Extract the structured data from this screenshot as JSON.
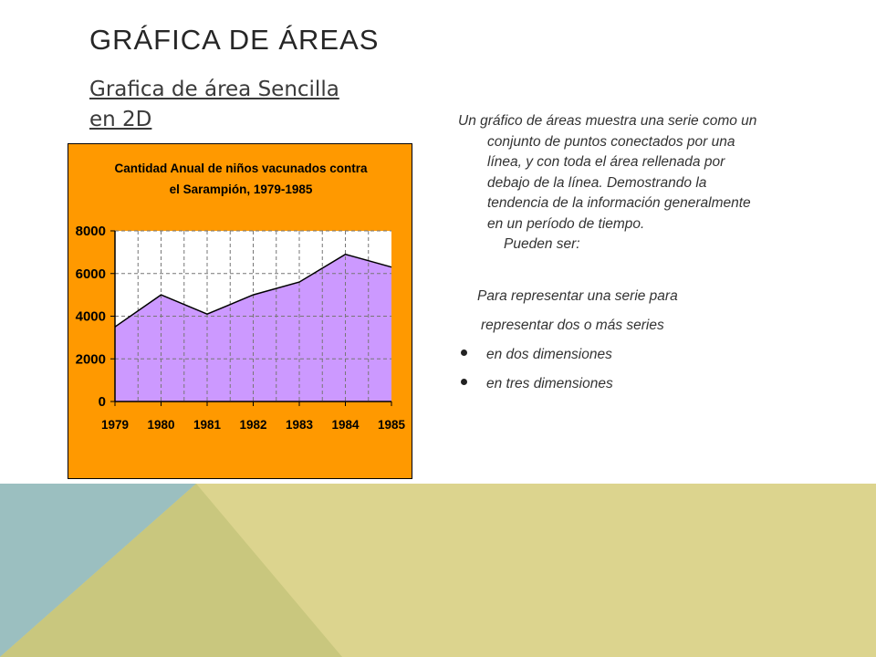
{
  "slide": {
    "title": "GRÁFICA DE ÁREAS",
    "subtitle": "Grafica de área Sencilla en 2D"
  },
  "description": {
    "paragraph": "Un gráfico de áreas muestra una serie como un conjunto de puntos conectados por una línea, y con toda el área rellenada por debajo de la línea. Demostrando  la tendencia de la información generalmente en un período  de tiempo.",
    "pueden": "Pueden ser:"
  },
  "list": {
    "line1": "Para representar una serie para",
    "line2": "representar dos o más series",
    "bullets": [
      "en dos dimensiones",
      "en tres dimensiones"
    ]
  },
  "colors": {
    "chart_background": "#ff9900",
    "plot_background": "#ffffff",
    "area_fill": "#cc99ff",
    "decor_blue": "#9bbfc0",
    "decor_olive": "#c9c77e",
    "decor_yellow": "#dcd48e"
  },
  "chart_data": {
    "type": "area",
    "title": "Cantidad Anual de niños vacunados contra el Sarampión, 1979-1985",
    "title_lines": [
      "Cantidad Anual de niños vacunados contra",
      "el Sarampión, 1979-1985"
    ],
    "categories": [
      "1979",
      "1980",
      "1981",
      "1982",
      "1983",
      "1984",
      "1985"
    ],
    "values": [
      3500,
      5000,
      4100,
      5000,
      5600,
      6900,
      6300
    ],
    "ylim": [
      0,
      8000
    ],
    "yticks": [
      0,
      2000,
      4000,
      6000,
      8000
    ],
    "grid": true,
    "legend": false
  }
}
